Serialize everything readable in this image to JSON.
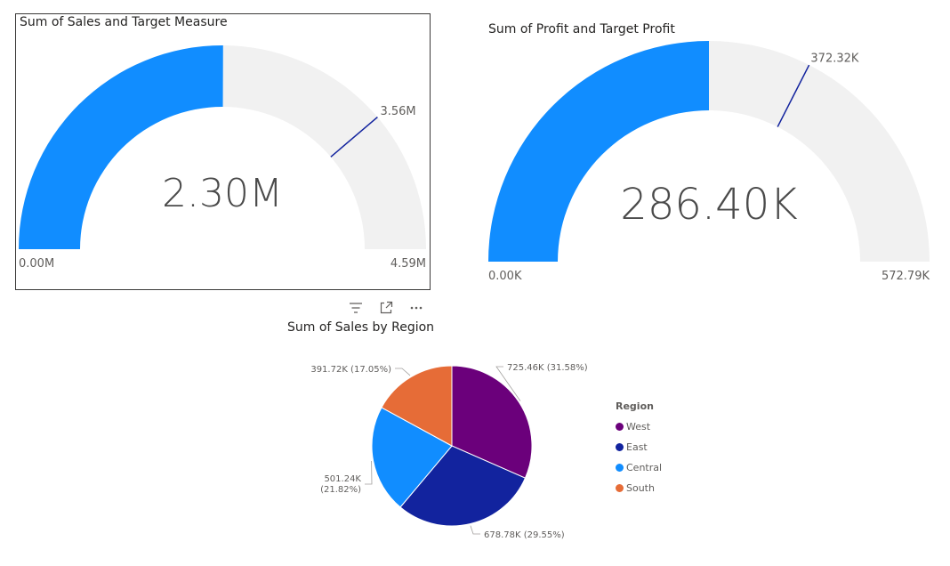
{
  "colors": {
    "gauge_fill": "#118DFF",
    "gauge_track": "#F1F1F1",
    "target_line": "#12239E",
    "label": "#605E5C",
    "value_text": "#4A4A4A"
  },
  "icons": [
    "filter-icon",
    "focus-mode-icon",
    "more-options-icon"
  ],
  "chart_data": [
    {
      "type": "gauge",
      "title": "Sum of Sales and Target Measure",
      "value": 2.3,
      "value_label": "2.30M",
      "target": 3.56,
      "target_label": "3.56M",
      "min": 0,
      "max": 4.59,
      "min_label": "0.00M",
      "max_label": "4.59M",
      "unit": "M"
    },
    {
      "type": "gauge",
      "title": "Sum of Profit and Target Profit",
      "value": 286.4,
      "value_label": "286.40K",
      "target": 372.32,
      "target_label": "372.32K",
      "min": 0,
      "max": 572.79,
      "min_label": "0.00K",
      "max_label": "572.79K",
      "unit": "K"
    },
    {
      "type": "pie",
      "title": "Sum of Sales by Region",
      "legend_title": "Region",
      "legend_position": "right",
      "slices": [
        {
          "label": "West",
          "value": 725.46,
          "percent": 31.58,
          "color": "#6B007B",
          "data_label": "725.46K (31.58%)"
        },
        {
          "label": "East",
          "value": 678.78,
          "percent": 29.55,
          "color": "#12239E",
          "data_label": "678.78K (29.55%)"
        },
        {
          "label": "Central",
          "value": 501.24,
          "percent": 21.82,
          "color": "#118DFF",
          "data_label": "501.24K (21.82%)"
        },
        {
          "label": "South",
          "value": 391.72,
          "percent": 17.05,
          "color": "#E66C37",
          "data_label": "391.72K (17.05%)"
        }
      ]
    }
  ]
}
